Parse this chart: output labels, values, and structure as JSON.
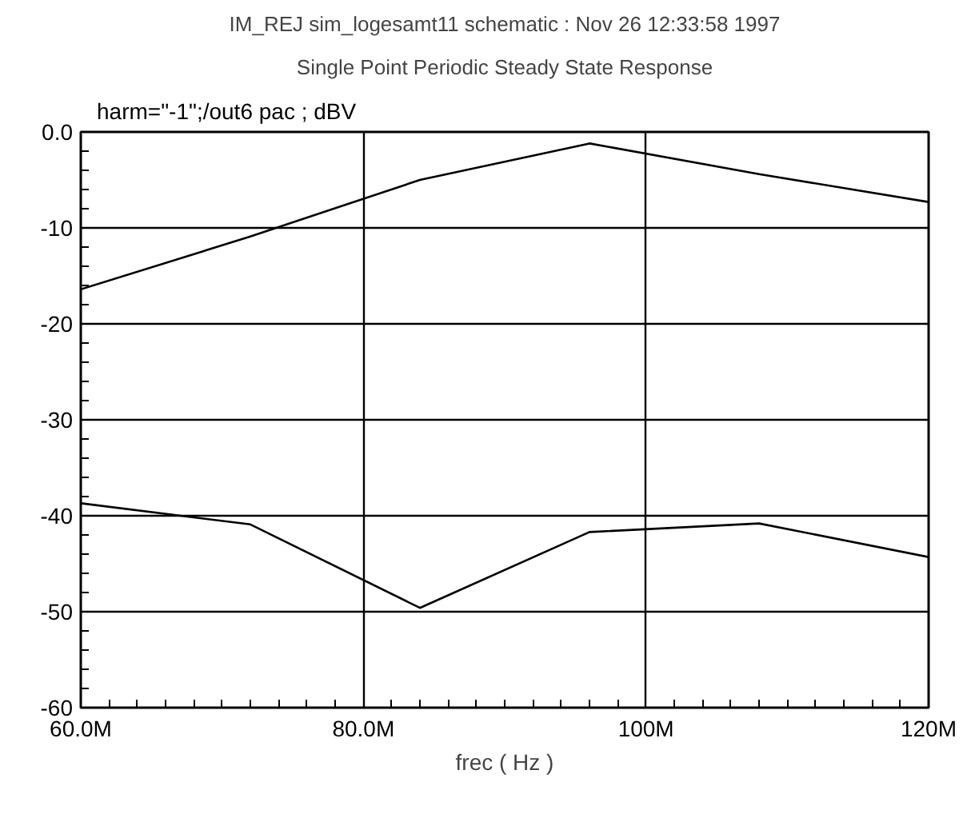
{
  "chart_data": {
    "type": "line",
    "title": "IM_REJ sim_logesamt11 schematic : Nov 26 12:33:58 1997",
    "subtitle": "Single Point Periodic Steady State Response",
    "xlabel": "frec ( Hz )",
    "x": [
      60000000,
      72000000,
      84000000,
      96000000,
      108000000,
      120000000
    ],
    "series": [
      {
        "name": "harm=\"-1\";/out6 pac ; dBV",
        "color": "#000000",
        "values": [
          -16.4,
          -10.9,
          -5.0,
          -1.2,
          -4.4,
          -7.3
        ]
      },
      {
        "color": "#000000",
        "values": [
          -38.7,
          -40.9,
          -49.6,
          -41.7,
          -40.8,
          -44.3
        ]
      }
    ],
    "xlim": [
      60000000,
      120000000
    ],
    "ylim": [
      -60,
      0
    ],
    "xticks": [
      {
        "value": 60000000,
        "label": "60.0M"
      },
      {
        "value": 80000000,
        "label": "80.0M"
      },
      {
        "value": 100000000,
        "label": "100M"
      },
      {
        "value": 120000000,
        "label": "120M"
      }
    ],
    "yticks": [
      {
        "value": 0,
        "label": "0.0"
      },
      -10,
      -20,
      -30,
      -40,
      -50,
      -60
    ],
    "grid": true,
    "line_style": "solid"
  }
}
